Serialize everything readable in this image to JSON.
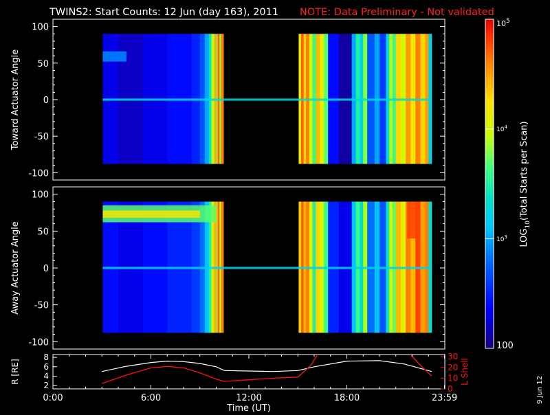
{
  "title": "TWINS2: Start Counts: 12 Jun (day 163), 2011",
  "note": "NOTE: Data Preliminary - Not validated",
  "side_date": "9 Jun 12",
  "colors": {
    "background": "#000000",
    "text": "#ffffff",
    "note": "#ff2020",
    "lshell": "#ff1010",
    "r": "#ffffff"
  },
  "chart_data": [
    {
      "type": "heatmap",
      "id": "toward",
      "ylabel": "Toward Actuator Angle",
      "ylim": [
        -110,
        110
      ],
      "yticks": [
        100,
        50,
        0,
        -50,
        -100
      ],
      "xlim": [
        0,
        24
      ],
      "data_extent_y": [
        -88,
        90
      ],
      "segments": [
        {
          "x0": 3.05,
          "x1": 10.45,
          "stripes": [
            [
              3.05,
              2.3
            ],
            [
              4.0,
              2.2
            ],
            [
              5.5,
              2.3
            ],
            [
              7.0,
              2.4
            ],
            [
              8.5,
              2.5
            ],
            [
              9.0,
              2.7
            ],
            [
              9.3,
              3.0
            ],
            [
              9.55,
              3.4
            ],
            [
              9.7,
              3.9
            ],
            [
              9.8,
              4.2
            ],
            [
              9.9,
              4.5
            ],
            [
              9.95,
              3.6
            ],
            [
              10.0,
              4.4
            ],
            [
              10.1,
              4.7
            ],
            [
              10.2,
              3.8
            ],
            [
              10.3,
              4.6
            ]
          ]
        },
        {
          "x0": 15.05,
          "x1": 23.2,
          "stripes": [
            [
              15.05,
              4.2
            ],
            [
              15.2,
              4.7
            ],
            [
              15.35,
              4.3
            ],
            [
              15.5,
              4.6
            ],
            [
              15.7,
              4.0
            ],
            [
              15.9,
              3.6
            ],
            [
              16.1,
              4.4
            ],
            [
              16.35,
              4.1
            ],
            [
              16.6,
              3.7
            ],
            [
              16.85,
              2.4
            ],
            [
              17.5,
              2.1
            ],
            [
              18.3,
              3.0
            ],
            [
              18.55,
              3.5
            ],
            [
              18.8,
              3.2
            ],
            [
              19.0,
              3.8
            ],
            [
              19.25,
              2.7
            ],
            [
              19.7,
              3.0
            ],
            [
              20.0,
              2.6
            ],
            [
              20.4,
              3.3
            ],
            [
              20.6,
              3.9
            ],
            [
              20.8,
              3.6
            ],
            [
              21.0,
              4.3
            ],
            [
              21.3,
              4.0
            ],
            [
              21.6,
              4.5
            ],
            [
              21.9,
              4.2
            ],
            [
              22.2,
              4.6
            ],
            [
              22.5,
              4.3
            ],
            [
              22.8,
              4.5
            ],
            [
              23.0,
              3.2
            ]
          ]
        }
      ],
      "features": [
        {
          "x0": 3.05,
          "x1": 4.5,
          "y0": 52,
          "y1": 66,
          "v": 2.9
        },
        {
          "x0": 3.05,
          "x1": 23.2,
          "y0": -1.5,
          "y1": 1.5,
          "v": 3.3
        }
      ]
    },
    {
      "type": "heatmap",
      "id": "away",
      "ylabel": "Away Actuator Angle",
      "ylim": [
        -110,
        110
      ],
      "yticks": [
        100,
        50,
        0,
        -50,
        -100
      ],
      "xlim": [
        0,
        24
      ],
      "data_extent_y": [
        -88,
        90
      ],
      "segments": [
        {
          "x0": 3.05,
          "x1": 10.45,
          "stripes": [
            [
              3.05,
              2.4
            ],
            [
              4.0,
              2.3
            ],
            [
              5.5,
              2.4
            ],
            [
              7.0,
              2.5
            ],
            [
              8.5,
              2.6
            ],
            [
              9.0,
              2.8
            ],
            [
              9.3,
              3.1
            ],
            [
              9.55,
              3.5
            ],
            [
              9.7,
              4.0
            ],
            [
              9.8,
              4.3
            ],
            [
              9.9,
              4.5
            ],
            [
              9.95,
              3.7
            ],
            [
              10.0,
              4.4
            ],
            [
              10.1,
              4.7
            ],
            [
              10.2,
              3.9
            ],
            [
              10.3,
              4.6
            ]
          ]
        },
        {
          "x0": 15.05,
          "x1": 23.2,
          "stripes": [
            [
              15.05,
              4.3
            ],
            [
              15.2,
              4.7
            ],
            [
              15.35,
              4.4
            ],
            [
              15.5,
              4.6
            ],
            [
              15.7,
              4.1
            ],
            [
              15.9,
              3.5
            ],
            [
              16.1,
              4.3
            ],
            [
              16.35,
              4.0
            ],
            [
              16.6,
              3.6
            ],
            [
              16.85,
              2.5
            ],
            [
              17.5,
              2.3
            ],
            [
              18.3,
              3.1
            ],
            [
              18.55,
              3.6
            ],
            [
              18.8,
              3.3
            ],
            [
              19.0,
              3.9
            ],
            [
              19.25,
              2.8
            ],
            [
              19.7,
              3.1
            ],
            [
              20.0,
              2.7
            ],
            [
              20.4,
              3.4
            ],
            [
              20.6,
              4.0
            ],
            [
              20.8,
              3.7
            ],
            [
              21.0,
              4.4
            ],
            [
              21.3,
              4.1
            ],
            [
              21.6,
              4.6
            ],
            [
              21.9,
              4.4
            ],
            [
              22.2,
              4.8
            ],
            [
              22.5,
              4.5
            ],
            [
              22.8,
              4.6
            ],
            [
              23.0,
              3.3
            ]
          ]
        }
      ],
      "features": [
        {
          "x0": 3.05,
          "x1": 10.0,
          "y0": 62,
          "y1": 85,
          "v": 3.7
        },
        {
          "x0": 3.05,
          "x1": 9.0,
          "y0": 68,
          "y1": 78,
          "v": 4.2
        },
        {
          "x0": 3.05,
          "x1": 23.2,
          "y0": -1.5,
          "y1": 1.5,
          "v": 3.2
        },
        {
          "x0": 21.7,
          "x1": 22.5,
          "y0": 40,
          "y1": 90,
          "v": 4.8
        }
      ]
    },
    {
      "type": "line",
      "id": "orbit",
      "ylabel": "R [RE]",
      "ylabel_right": "L Shell",
      "xlabel": "Time (UT)",
      "xlim": [
        0,
        24
      ],
      "xticks": [
        0,
        6,
        12,
        18,
        23.983
      ],
      "xticklabels": [
        "0:00",
        "6:00",
        "12:00",
        "18:00",
        "23:59"
      ],
      "ylim": [
        1.3,
        8.6
      ],
      "yticks": [
        2,
        4,
        6,
        8
      ],
      "ylim_right": [
        0,
        32
      ],
      "yticks_right": [
        0,
        10,
        20,
        30
      ],
      "series": [
        {
          "name": "R [RE]",
          "axis": "left",
          "x": [
            3.0,
            4.5,
            6.0,
            7.0,
            8.0,
            9.0,
            10.0,
            10.5,
            12.0,
            13.5,
            15.0,
            16.0,
            18.0,
            20.0,
            21.5,
            23.2
          ],
          "y": [
            5.0,
            6.1,
            6.9,
            7.2,
            7.1,
            6.7,
            6.0,
            5.2,
            5.1,
            5.0,
            5.2,
            6.0,
            7.2,
            7.3,
            6.6,
            5.0
          ]
        },
        {
          "name": "L Shell",
          "axis": "right",
          "segments": [
            {
              "x": [
                3.0,
                4.5,
                6.0,
                7.0,
                8.0,
                9.0,
                10.0,
                10.5,
                12.0,
                13.5,
                15.0,
                15.8,
                16.2
              ],
              "y": [
                5,
                13,
                19.5,
                21,
                19.5,
                15,
                9,
                7,
                8.5,
                10,
                11,
                22,
                32
              ]
            },
            {
              "x": [
                21.9,
                22.5,
                23.2
              ],
              "y": [
                32,
                22,
                12
              ]
            }
          ]
        }
      ]
    }
  ],
  "colorbar": {
    "label": "LOG10(Total Starts per Scan)",
    "label_main": "LOG",
    "label_sub": "10",
    "label_rest": "(Total Starts per Scan)",
    "min": 2,
    "max": 5,
    "tick_bottom": "100",
    "tick_3_base": "10",
    "tick_3_exp": "3",
    "tick_4_base": "10",
    "tick_4_exp": "4",
    "tick_5_base": "10",
    "tick_5_exp": "5"
  }
}
